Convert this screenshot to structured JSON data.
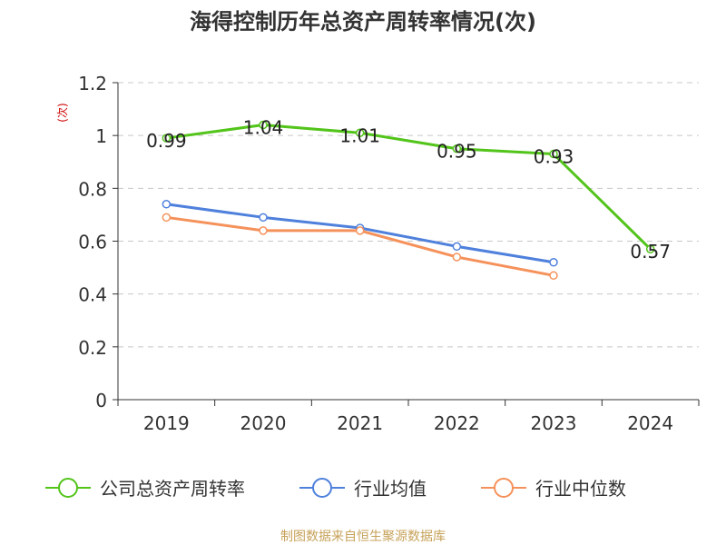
{
  "chart_data": {
    "type": "line",
    "title": "海得控制历年总资产周转率情况(次)",
    "ylabel": "(次)",
    "xlabel": "",
    "categories": [
      "2019",
      "2020",
      "2021",
      "2022",
      "2023",
      "2024"
    ],
    "ylim": [
      0,
      1.2
    ],
    "yticks": [
      0,
      0.2,
      0.4,
      0.6,
      0.8,
      1,
      1.2
    ],
    "ytick_labels": [
      "0",
      "0.2",
      "0.4",
      "0.6",
      "0.8",
      "1",
      "1.2"
    ],
    "grid": true,
    "legend_position": "bottom",
    "series": [
      {
        "name": "公司总资产周转率",
        "color": "#52c41a",
        "values": [
          0.99,
          1.04,
          1.01,
          0.95,
          0.93,
          0.57
        ],
        "data_labels": [
          "0.99",
          "1.04",
          "1.01",
          "0.95",
          "0.93",
          "0.57"
        ]
      },
      {
        "name": "行业均值",
        "color": "#4e80dc",
        "values": [
          0.74,
          0.69,
          0.65,
          0.58,
          0.52,
          null
        ]
      },
      {
        "name": "行业中位数",
        "color": "#f5915a",
        "values": [
          0.69,
          0.64,
          0.64,
          0.54,
          0.47,
          null
        ]
      }
    ],
    "source": "制图数据来自恒生聚源数据库"
  },
  "colors": {
    "title": "#333333",
    "axis": "#333333",
    "grid": "#c8c8c8",
    "ylabel": "#cc0000",
    "source": "#c7a25a"
  }
}
